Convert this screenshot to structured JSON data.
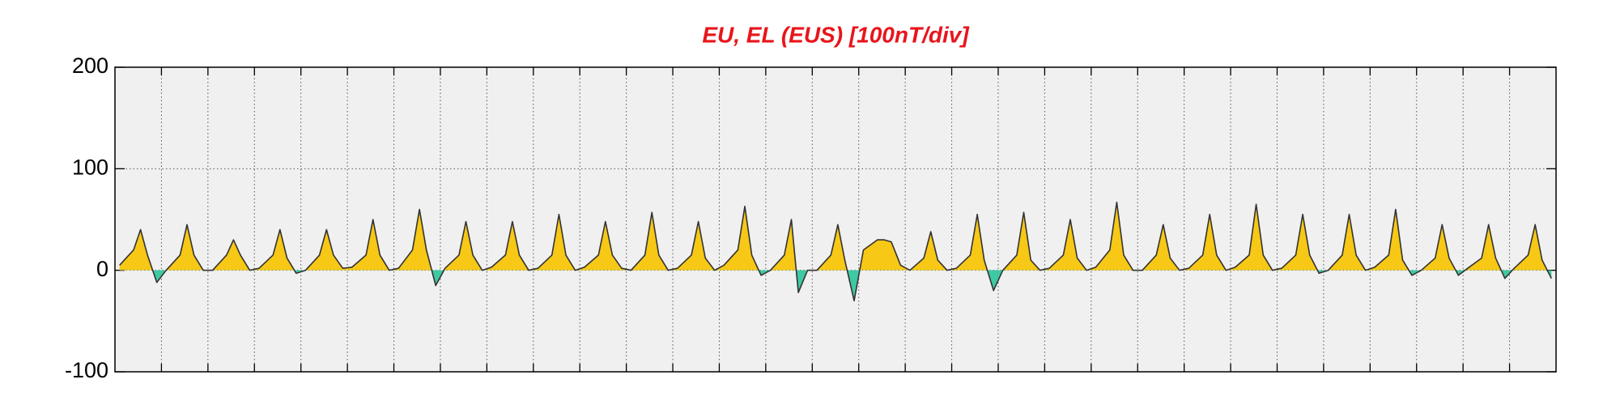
{
  "chart_data": {
    "type": "area",
    "title": "EU, EL (EUS)  [100nT/div]",
    "x": [
      0.1,
      0.4,
      0.55,
      0.7,
      0.9,
      1.1,
      1.4,
      1.55,
      1.7,
      1.9,
      2.1,
      2.4,
      2.55,
      2.7,
      2.9,
      3.1,
      3.4,
      3.55,
      3.7,
      3.9,
      4.1,
      4.4,
      4.55,
      4.7,
      4.9,
      5.1,
      5.4,
      5.55,
      5.7,
      5.9,
      6.1,
      6.4,
      6.55,
      6.7,
      6.9,
      7.1,
      7.4,
      7.55,
      7.7,
      7.9,
      8.1,
      8.4,
      8.55,
      8.7,
      8.9,
      9.1,
      9.4,
      9.55,
      9.7,
      9.9,
      10.1,
      10.4,
      10.55,
      10.7,
      10.9,
      11.1,
      11.4,
      11.55,
      11.7,
      11.9,
      12.1,
      12.4,
      12.55,
      12.7,
      12.9,
      13.1,
      13.4,
      13.55,
      13.7,
      13.9,
      14.1,
      14.4,
      14.55,
      14.7,
      14.9,
      15.1,
      15.4,
      15.55,
      15.7,
      15.9,
      16.1,
      16.4,
      16.55,
      16.7,
      16.9,
      17.1,
      17.4,
      17.55,
      17.7,
      17.9,
      18.1,
      18.4,
      18.55,
      18.7,
      18.9,
      19.1,
      19.4,
      19.55,
      19.7,
      19.9,
      20.1,
      20.4,
      20.55,
      20.7,
      20.9,
      21.1,
      21.4,
      21.55,
      21.7,
      21.9,
      22.1,
      22.4,
      22.55,
      22.7,
      22.9,
      23.1,
      23.4,
      23.55,
      23.7,
      23.9,
      24.1,
      24.4,
      24.55,
      24.7,
      24.9,
      25.1,
      25.4,
      25.55,
      25.7,
      25.9,
      26.1,
      26.4,
      26.55,
      26.7,
      26.9,
      27.1,
      27.4,
      27.55,
      27.7,
      27.9,
      28.1,
      28.4,
      28.55,
      28.7,
      28.9,
      29.1,
      29.4,
      29.55,
      29.7,
      29.9,
      30.1,
      30.4,
      30.55,
      30.7,
      30.9
    ],
    "values": [
      5,
      20,
      40,
      15,
      -12,
      0,
      15,
      45,
      15,
      0,
      0,
      15,
      30,
      15,
      0,
      2,
      15,
      40,
      12,
      -3,
      0,
      15,
      40,
      15,
      2,
      3,
      15,
      50,
      15,
      0,
      2,
      20,
      60,
      20,
      -15,
      2,
      15,
      48,
      15,
      0,
      3,
      15,
      48,
      15,
      0,
      2,
      15,
      55,
      15,
      0,
      3,
      15,
      48,
      15,
      2,
      0,
      15,
      57,
      15,
      0,
      2,
      15,
      48,
      12,
      0,
      5,
      20,
      63,
      15,
      -5,
      0,
      15,
      50,
      -22,
      0,
      0,
      15,
      45,
      10,
      -30,
      20,
      30,
      30,
      28,
      5,
      0,
      12,
      38,
      10,
      0,
      2,
      15,
      55,
      10,
      -20,
      0,
      15,
      57,
      10,
      0,
      2,
      15,
      50,
      12,
      0,
      3,
      20,
      67,
      15,
      0,
      0,
      15,
      45,
      12,
      0,
      2,
      15,
      55,
      15,
      0,
      3,
      15,
      65,
      15,
      0,
      2,
      15,
      55,
      15,
      -3,
      0,
      15,
      55,
      15,
      0,
      3,
      15,
      60,
      10,
      -5,
      0,
      12,
      45,
      12,
      -5,
      2,
      12,
      45,
      12,
      -8,
      2,
      15,
      45,
      10,
      -8
    ],
    "color_positive": "#f7c815",
    "color_negative": "#3fc9a3",
    "line_color": "#333333",
    "xlim": [
      0,
      31
    ],
    "xticks": [
      1,
      2,
      3,
      4,
      5,
      6,
      7,
      8,
      9,
      10,
      11,
      12,
      13,
      14,
      15,
      16,
      17,
      18,
      19,
      20,
      21,
      22,
      23,
      24,
      25,
      26,
      27,
      28,
      29,
      30
    ],
    "ylim": [
      -100,
      200
    ],
    "yticks": [
      -100,
      0,
      100,
      200
    ],
    "grid": true
  }
}
